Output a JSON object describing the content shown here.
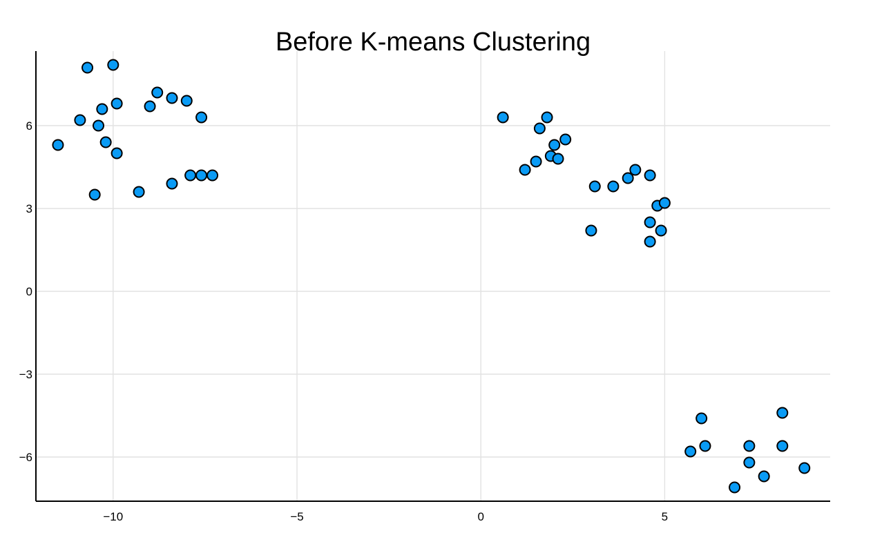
{
  "chart_data": {
    "type": "scatter",
    "title": "Before K-means Clustering",
    "xlabel": "",
    "ylabel": "",
    "xlim": [
      -12.1,
      9.5
    ],
    "ylim": [
      -7.6,
      8.7
    ],
    "x_ticks": [
      -10,
      -5,
      0,
      5
    ],
    "x_tick_labels": [
      "−10",
      "−5",
      "0",
      "5"
    ],
    "y_ticks": [
      -6,
      -3,
      0,
      3,
      6
    ],
    "y_tick_labels": [
      "−6",
      "−3",
      "0",
      "3",
      "6"
    ],
    "grid": true,
    "legend": "none",
    "marker_color": "#0a9bf5",
    "series": [
      {
        "x": [
          -11.5,
          -10.7,
          -10.0,
          -10.9,
          -10.3,
          -9.9,
          -10.4,
          -10.2,
          -9.9,
          -9.0,
          -8.8,
          -8.4,
          -8.0,
          -7.6,
          -10.5,
          -9.3,
          -8.4,
          -7.9,
          -7.6,
          -7.3,
          0.6,
          1.6,
          1.8,
          2.0,
          2.3,
          1.2,
          1.5,
          1.9,
          2.1,
          3.1,
          3.6,
          4.0,
          4.2,
          4.6,
          4.8,
          5.0,
          4.6,
          4.9,
          3.0,
          4.6,
          6.0,
          8.2,
          5.7,
          6.1,
          7.3,
          8.2,
          7.3,
          8.8,
          7.7,
          6.9
        ],
        "y": [
          5.3,
          8.1,
          8.2,
          6.2,
          6.6,
          6.8,
          6.0,
          5.4,
          5.0,
          6.7,
          7.2,
          7.0,
          6.9,
          6.3,
          3.5,
          3.6,
          3.9,
          4.2,
          4.2,
          4.2,
          6.3,
          5.9,
          6.3,
          5.3,
          5.5,
          4.4,
          4.7,
          4.9,
          4.8,
          3.8,
          3.8,
          4.1,
          4.4,
          4.2,
          3.1,
          3.2,
          2.5,
          2.2,
          2.2,
          1.8,
          -4.6,
          -4.4,
          -5.8,
          -5.6,
          -5.6,
          -5.6,
          -6.2,
          -6.4,
          -6.7,
          -7.1
        ]
      }
    ]
  }
}
